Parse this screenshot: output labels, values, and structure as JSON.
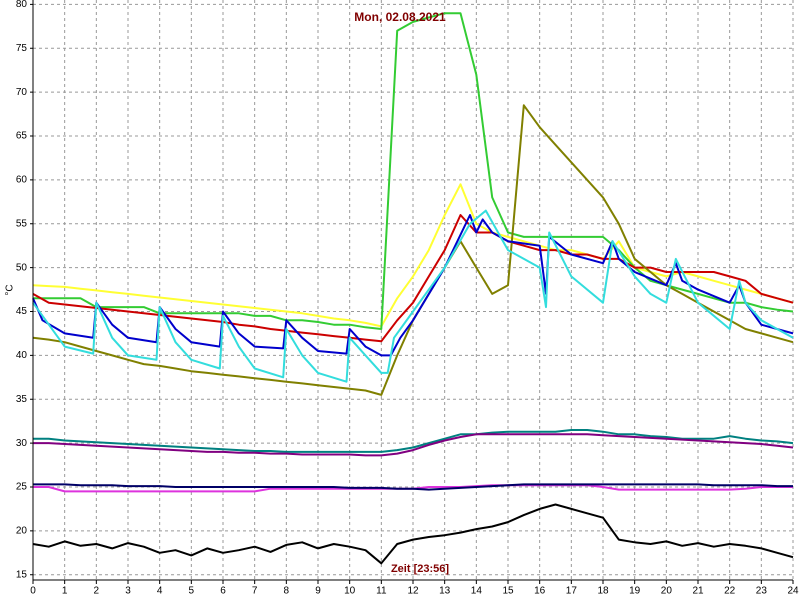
{
  "chart_data": {
    "type": "line",
    "title": "Mon, 02.08.2021",
    "x_label": "Zeit [23:56]",
    "y_label": "°C",
    "xlim": [
      0,
      24
    ],
    "ylim": [
      14.4,
      80.5
    ],
    "xticks": [
      0,
      1,
      2,
      3,
      4,
      5,
      6,
      7,
      8,
      9,
      10,
      11,
      12,
      13,
      14,
      15,
      16,
      17,
      18,
      19,
      20,
      21,
      22,
      23,
      24
    ],
    "yticks": [
      15,
      20,
      25,
      30,
      35,
      40,
      45,
      50,
      55,
      60,
      65,
      70,
      75,
      80
    ],
    "grid": true,
    "x": [
      0,
      0.5,
      1,
      1.5,
      2,
      2.5,
      3,
      3.5,
      4,
      4.5,
      5,
      5.5,
      6,
      6.5,
      7,
      7.5,
      8,
      8.5,
      9,
      9.5,
      10,
      10.5,
      11,
      11.5,
      12,
      12.5,
      13,
      13.5,
      14,
      14.5,
      15,
      15.5,
      16,
      16.5,
      17,
      17.5,
      18,
      18.5,
      19,
      19.5,
      20,
      20.5,
      21,
      21.5,
      22,
      22.5,
      23,
      23.5,
      24
    ],
    "series": [
      {
        "color": "#ffff33",
        "values": [
          48,
          47.9,
          47.8,
          47.6,
          47.4,
          47.2,
          47,
          46.8,
          46.6,
          46.4,
          46.2,
          46,
          45.8,
          45.6,
          45.4,
          45.2,
          45,
          44.8,
          44.5,
          44.2,
          44,
          43.7,
          43.3,
          46.5,
          49,
          52,
          56,
          59.5,
          55,
          54,
          53.5,
          53,
          52.5,
          52,
          52,
          51.5,
          51,
          53,
          50,
          49.5,
          49,
          49.5,
          49,
          48.5,
          48,
          47.5,
          47,
          46.5,
          46
        ]
      },
      {
        "color": "#33cc33",
        "values": [
          46.5,
          46.5,
          46.5,
          46.5,
          45.5,
          45.5,
          45.5,
          45.5,
          44.8,
          44.8,
          44.8,
          44.8,
          44.8,
          44.8,
          44.5,
          44.5,
          44,
          44,
          43.8,
          43.5,
          43.5,
          43.2,
          43,
          77,
          78,
          78.5,
          79,
          79,
          72,
          58,
          54,
          53.5,
          53.5,
          53.5,
          53.5,
          53.5,
          53.5,
          52,
          50,
          48.5,
          48,
          47.5,
          47,
          46.5,
          46,
          46,
          45.5,
          45.2,
          45
        ]
      },
      {
        "color": "#cc0000",
        "values": [
          47,
          46,
          45.8,
          45.6,
          45.4,
          45.2,
          45,
          44.8,
          44.6,
          44.4,
          44.2,
          44,
          43.8,
          43.5,
          43.3,
          43,
          42.8,
          42.6,
          42.4,
          42.2,
          42,
          41.8,
          41.6,
          44,
          46,
          49,
          52,
          56,
          54,
          54,
          53,
          52.5,
          52,
          52,
          51.5,
          51.5,
          51,
          51,
          50,
          50,
          49.5,
          49.5,
          49.5,
          49.5,
          49,
          48.5,
          47,
          46.5,
          46
        ]
      },
      {
        "color": "#808000",
        "values": [
          42,
          41.8,
          41.5,
          41,
          40.5,
          40,
          39.5,
          39,
          38.8,
          38.5,
          38.2,
          38,
          37.8,
          37.6,
          37.4,
          37.2,
          37,
          36.8,
          36.6,
          36.4,
          36.2,
          36,
          35.5,
          40,
          44,
          47,
          50,
          53,
          50,
          47,
          48,
          68.5,
          66,
          64,
          62,
          60,
          58,
          55,
          51,
          49.5,
          48,
          47,
          46,
          45,
          44,
          43,
          42.5,
          42,
          41.5
        ]
      },
      {
        "color": "#0000cc",
        "x": [
          0,
          0.3,
          1,
          1.9,
          2,
          2.5,
          3,
          3.9,
          4,
          4.5,
          5,
          5.9,
          6,
          6.5,
          7,
          7.9,
          8,
          8.5,
          9,
          9.9,
          10,
          10.5,
          11,
          11.3,
          11.6,
          12,
          13,
          13.8,
          14,
          14.2,
          14.5,
          15,
          16,
          16.2,
          16.3,
          17,
          18,
          18.3,
          18.5,
          19,
          20,
          20.3,
          20.5,
          21,
          22,
          22.3,
          22.5,
          23,
          24
        ],
        "values": [
          46.5,
          44,
          42.5,
          42,
          46,
          43.5,
          42,
          41.5,
          45.5,
          43,
          41.5,
          41,
          45,
          42.5,
          41,
          40.8,
          44,
          42,
          40.5,
          40.2,
          43,
          41,
          40,
          40,
          42,
          44,
          50,
          56,
          54,
          55.5,
          54,
          53,
          52.5,
          47,
          53.5,
          51.5,
          50.5,
          53,
          51,
          49.5,
          48,
          50.5,
          48.5,
          47.5,
          46,
          48,
          46,
          43.5,
          42.5
        ]
      },
      {
        "color": "#33dddd",
        "x": [
          0,
          1,
          1.9,
          2,
          2.5,
          3,
          3.9,
          4,
          4.5,
          5,
          5.9,
          6,
          6.5,
          7,
          7.9,
          8,
          8.5,
          9,
          9.9,
          10,
          10.5,
          11,
          11.2,
          11.4,
          12,
          13,
          13.8,
          14.3,
          15,
          16,
          16.2,
          16.3,
          17,
          18,
          18.3,
          19,
          19.5,
          20,
          20.3,
          21,
          22,
          22.3,
          22.5,
          23,
          24
        ],
        "values": [
          46,
          41,
          40.2,
          46,
          42,
          40,
          39.5,
          45.5,
          41.5,
          39.5,
          38.5,
          44.5,
          41,
          38.5,
          37.5,
          43,
          40,
          38,
          37,
          42,
          40,
          38,
          38,
          42,
          45,
          50,
          55,
          56.5,
          52,
          50,
          45.5,
          54,
          49,
          46,
          53,
          49,
          47,
          46,
          51,
          46,
          43,
          48.5,
          46,
          44,
          42
        ]
      },
      {
        "color": "#008080",
        "values": [
          30.5,
          30.5,
          30.3,
          30.2,
          30.1,
          30,
          29.9,
          29.8,
          29.7,
          29.6,
          29.5,
          29.4,
          29.3,
          29.2,
          29.1,
          29.1,
          29,
          29,
          29,
          29,
          29,
          29,
          29,
          29.2,
          29.5,
          30,
          30.5,
          31,
          31,
          31.2,
          31.3,
          31.3,
          31.3,
          31.3,
          31.5,
          31.5,
          31.3,
          31,
          31,
          30.8,
          30.7,
          30.5,
          30.5,
          30.5,
          30.8,
          30.5,
          30.3,
          30.2,
          30
        ]
      },
      {
        "color": "#800080",
        "values": [
          30,
          30,
          29.9,
          29.8,
          29.7,
          29.6,
          29.5,
          29.4,
          29.3,
          29.2,
          29.1,
          29,
          29,
          28.9,
          28.9,
          28.8,
          28.8,
          28.7,
          28.7,
          28.7,
          28.7,
          28.6,
          28.6,
          28.8,
          29.2,
          29.8,
          30.3,
          30.7,
          31,
          31,
          31,
          31,
          31,
          31,
          31,
          31,
          30.9,
          30.8,
          30.7,
          30.6,
          30.5,
          30.4,
          30.3,
          30.2,
          30.1,
          30,
          29.9,
          29.7,
          29.5
        ]
      },
      {
        "color": "#dd33dd",
        "values": [
          25,
          25,
          24.5,
          24.5,
          24.5,
          24.5,
          24.5,
          24.5,
          24.5,
          24.5,
          24.5,
          24.5,
          24.5,
          24.5,
          24.5,
          24.8,
          24.8,
          24.8,
          24.8,
          24.8,
          24.8,
          24.8,
          24.8,
          24.8,
          24.8,
          25,
          25,
          25,
          25.1,
          25.2,
          25.2,
          25.2,
          25.2,
          25.2,
          25.2,
          25.2,
          25,
          24.7,
          24.7,
          24.7,
          24.7,
          24.7,
          24.7,
          24.7,
          24.7,
          24.8,
          25,
          25,
          25
        ]
      },
      {
        "color": "#000066",
        "values": [
          25.3,
          25.3,
          25.3,
          25.2,
          25.2,
          25.2,
          25.1,
          25.1,
          25.1,
          25,
          25,
          25,
          25,
          25,
          25,
          25,
          25,
          25,
          25,
          25,
          24.9,
          24.9,
          24.9,
          24.8,
          24.8,
          24.7,
          24.8,
          24.9,
          25,
          25.1,
          25.2,
          25.3,
          25.3,
          25.3,
          25.3,
          25.3,
          25.3,
          25.3,
          25.3,
          25.3,
          25.3,
          25.3,
          25.3,
          25.2,
          25.2,
          25.2,
          25.2,
          25.1,
          25.1
        ]
      },
      {
        "color": "#000000",
        "values": [
          18.5,
          18.2,
          18.8,
          18.3,
          18.5,
          18,
          18.6,
          18.2,
          17.5,
          17.8,
          17.2,
          18,
          17.5,
          17.8,
          18.2,
          17.6,
          18.4,
          18.7,
          18,
          18.5,
          18.2,
          17.8,
          16.3,
          18.5,
          19,
          19.3,
          19.5,
          19.8,
          20.2,
          20.5,
          21,
          21.8,
          22.5,
          23,
          22.5,
          22,
          21.5,
          19,
          18.7,
          18.5,
          18.8,
          18.3,
          18.6,
          18.2,
          18.5,
          18.3,
          18,
          17.5,
          17
        ]
      }
    ]
  }
}
